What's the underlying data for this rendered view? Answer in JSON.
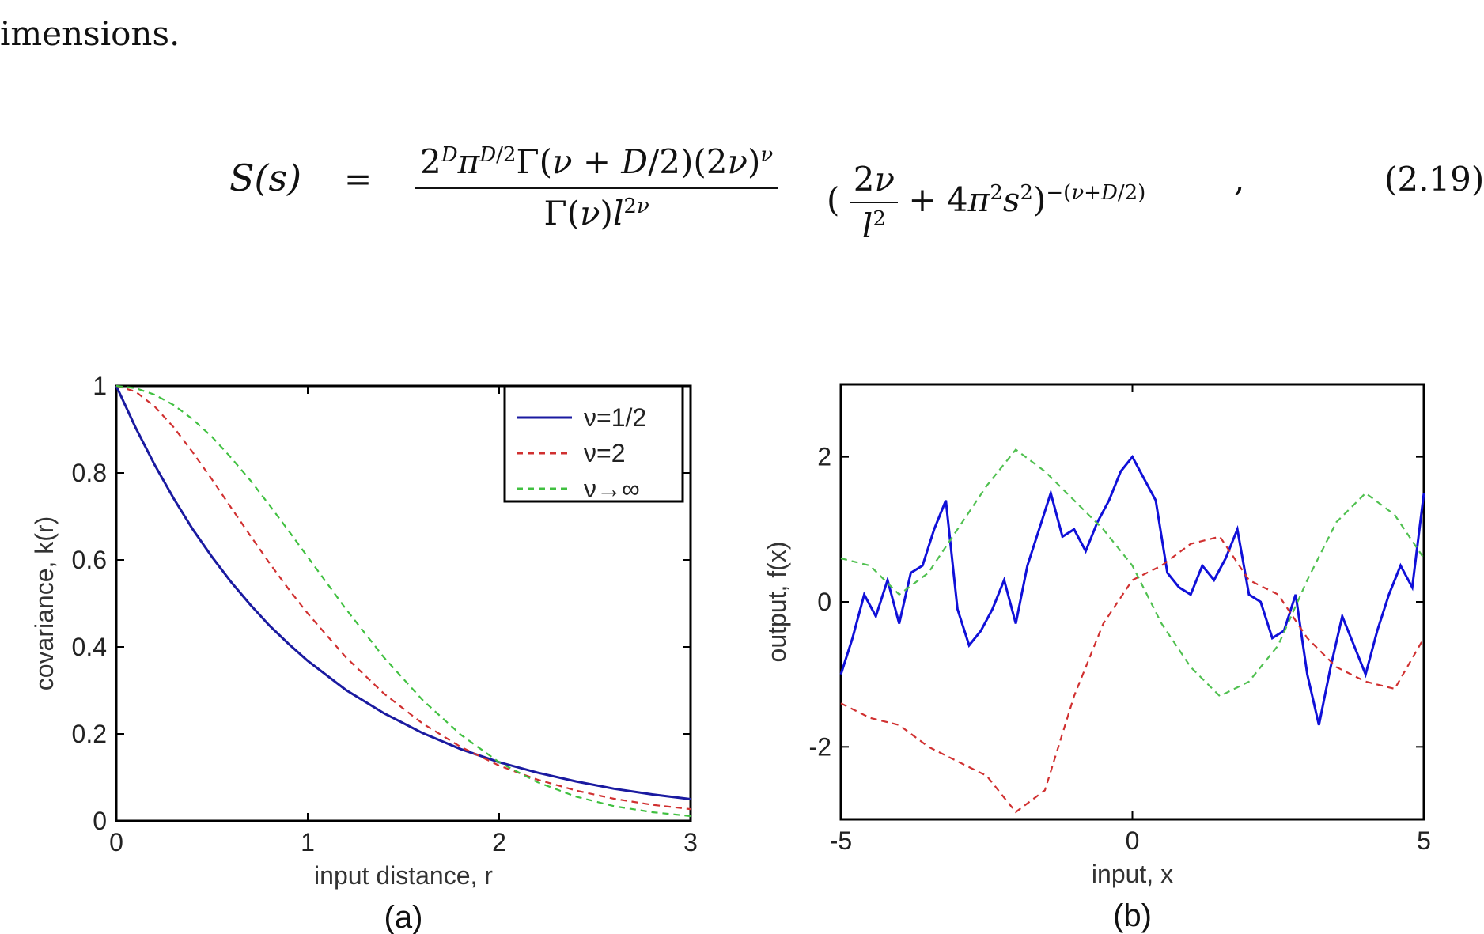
{
  "top_text": "imensions.",
  "equation": {
    "lhs": "S(s)",
    "equals": "=",
    "numerator": "2^D π^{D/2} Γ(ν + D/2)(2ν)^ν",
    "denominator": "Γ(ν) l^{2ν}",
    "rest": "(2ν/l² + 4π²s²)^{−(ν+D/2)}",
    "comma": ",",
    "number": "(2.19)"
  },
  "chart_data": [
    {
      "type": "line",
      "title": "",
      "xlabel": "input distance, r",
      "ylabel": "covariance, k(r)",
      "xlim": [
        0,
        3
      ],
      "ylim": [
        0,
        1
      ],
      "xticks": [
        "0",
        "1",
        "2",
        "3"
      ],
      "yticks": [
        "0",
        "0.2",
        "0.4",
        "0.6",
        "0.8",
        "1"
      ],
      "legend_position": "top-right",
      "caption": "(a)",
      "series": [
        {
          "name": "ν=1/2",
          "color": "#1a1aa0",
          "style": "solid",
          "x": [
            0,
            0.1,
            0.2,
            0.3,
            0.4,
            0.5,
            0.6,
            0.7,
            0.8,
            0.9,
            1.0,
            1.2,
            1.4,
            1.6,
            1.8,
            2.0,
            2.2,
            2.4,
            2.6,
            2.8,
            3.0
          ],
          "y": [
            1.0,
            0.905,
            0.819,
            0.741,
            0.67,
            0.607,
            0.549,
            0.497,
            0.449,
            0.407,
            0.368,
            0.301,
            0.247,
            0.202,
            0.165,
            0.135,
            0.111,
            0.091,
            0.074,
            0.061,
            0.05
          ]
        },
        {
          "name": "ν=2",
          "color": "#d03030",
          "style": "dashed",
          "x": [
            0,
            0.1,
            0.2,
            0.3,
            0.4,
            0.5,
            0.6,
            0.7,
            0.8,
            0.9,
            1.0,
            1.2,
            1.4,
            1.6,
            1.8,
            2.0,
            2.2,
            2.4,
            2.6,
            2.8,
            3.0
          ],
          "y": [
            1.0,
            0.987,
            0.953,
            0.905,
            0.847,
            0.785,
            0.72,
            0.656,
            0.593,
            0.533,
            0.477,
            0.376,
            0.292,
            0.224,
            0.17,
            0.127,
            0.095,
            0.07,
            0.051,
            0.037,
            0.027
          ]
        },
        {
          "name": "ν→∞",
          "color": "#40c040",
          "style": "dashed",
          "x": [
            0,
            0.1,
            0.2,
            0.3,
            0.4,
            0.5,
            0.6,
            0.7,
            0.8,
            0.9,
            1.0,
            1.2,
            1.4,
            1.6,
            1.8,
            2.0,
            2.2,
            2.4,
            2.6,
            2.8,
            3.0
          ],
          "y": [
            1.0,
            0.995,
            0.98,
            0.956,
            0.923,
            0.883,
            0.835,
            0.783,
            0.726,
            0.667,
            0.607,
            0.487,
            0.375,
            0.278,
            0.198,
            0.135,
            0.089,
            0.056,
            0.034,
            0.02,
            0.011
          ]
        }
      ]
    },
    {
      "type": "line",
      "title": "",
      "xlabel": "input, x",
      "ylabel": "output, f(x)",
      "xlim": [
        -5,
        5
      ],
      "ylim": [
        -3,
        3
      ],
      "xticks": [
        "-5",
        "0",
        "5"
      ],
      "yticks": [
        "-2",
        "0",
        "2"
      ],
      "caption": "(b)",
      "series": [
        {
          "name": "",
          "color": "#1010d8",
          "style": "solid",
          "x": [
            -5,
            -4.8,
            -4.6,
            -4.4,
            -4.2,
            -4.0,
            -3.8,
            -3.6,
            -3.4,
            -3.2,
            -3.0,
            -2.8,
            -2.6,
            -2.4,
            -2.2,
            -2.0,
            -1.8,
            -1.6,
            -1.4,
            -1.2,
            -1.0,
            -0.8,
            -0.6,
            -0.4,
            -0.2,
            0.0,
            0.2,
            0.4,
            0.6,
            0.8,
            1.0,
            1.2,
            1.4,
            1.6,
            1.8,
            2.0,
            2.2,
            2.4,
            2.6,
            2.8,
            3.0,
            3.2,
            3.4,
            3.6,
            3.8,
            4.0,
            4.2,
            4.4,
            4.6,
            4.8,
            5.0
          ],
          "y": [
            -1.0,
            -0.5,
            0.1,
            -0.2,
            0.3,
            -0.3,
            0.4,
            0.5,
            1.0,
            1.4,
            -0.1,
            -0.6,
            -0.4,
            -0.1,
            0.3,
            -0.3,
            0.5,
            1.0,
            1.5,
            0.9,
            1.0,
            0.7,
            1.1,
            1.4,
            1.8,
            2.0,
            1.7,
            1.4,
            0.4,
            0.2,
            0.1,
            0.5,
            0.3,
            0.6,
            1.0,
            0.1,
            0.0,
            -0.5,
            -0.4,
            0.1,
            -1.0,
            -1.7,
            -0.9,
            -0.2,
            -0.6,
            -1.0,
            -0.4,
            0.1,
            0.5,
            0.2,
            1.5
          ]
        },
        {
          "name": "",
          "color": "#d03030",
          "style": "dashed",
          "x": [
            -5,
            -4.5,
            -4.0,
            -3.5,
            -3.0,
            -2.5,
            -2.0,
            -1.5,
            -1.0,
            -0.5,
            0.0,
            0.5,
            1.0,
            1.5,
            2.0,
            2.5,
            3.0,
            3.5,
            4.0,
            4.5,
            5.0
          ],
          "y": [
            -1.4,
            -1.6,
            -1.7,
            -2.0,
            -2.2,
            -2.4,
            -2.9,
            -2.6,
            -1.3,
            -0.3,
            0.3,
            0.5,
            0.8,
            0.9,
            0.3,
            0.1,
            -0.5,
            -0.9,
            -1.1,
            -1.2,
            -0.5
          ]
        },
        {
          "name": "",
          "color": "#50c050",
          "style": "dashed",
          "x": [
            -5,
            -4.5,
            -4.0,
            -3.5,
            -3.0,
            -2.5,
            -2.0,
            -1.5,
            -1.0,
            -0.5,
            0.0,
            0.5,
            1.0,
            1.5,
            2.0,
            2.5,
            3.0,
            3.5,
            4.0,
            4.5,
            5.0
          ],
          "y": [
            0.6,
            0.5,
            0.1,
            0.4,
            1.0,
            1.6,
            2.1,
            1.8,
            1.4,
            1.0,
            0.5,
            -0.3,
            -0.9,
            -1.3,
            -1.1,
            -0.6,
            0.3,
            1.1,
            1.5,
            1.2,
            0.6
          ]
        }
      ]
    }
  ]
}
